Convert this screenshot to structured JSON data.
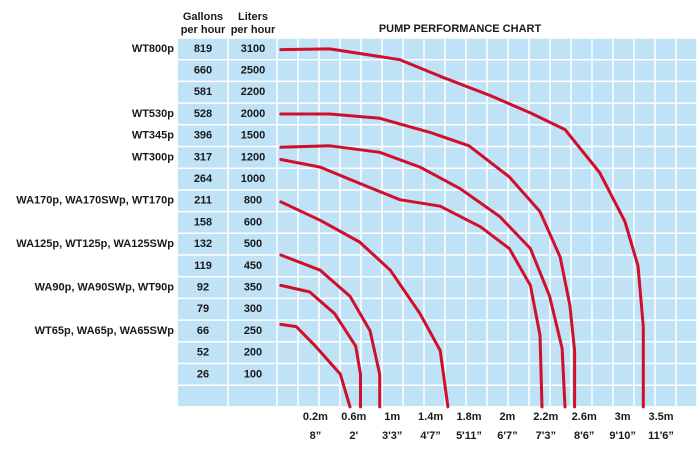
{
  "chart_data": {
    "type": "line",
    "title": "PUMP PERFORMANCE CHART",
    "column_headers": [
      [
        "Gallons",
        "per hour"
      ],
      [
        "Liters",
        "per hour"
      ]
    ],
    "rows": [
      {
        "model": "WT800p",
        "gallons": 819,
        "liters": 3100
      },
      {
        "gallons": 660,
        "liters": 2500
      },
      {
        "gallons": 581,
        "liters": 2200
      },
      {
        "model": "WT530p",
        "gallons": 528,
        "liters": 2000
      },
      {
        "model": "WT345p",
        "gallons": 396,
        "liters": 1500
      },
      {
        "model": "WT300p",
        "gallons": 317,
        "liters": 1200
      },
      {
        "gallons": 264,
        "liters": 1000
      },
      {
        "model": "WA170p, WA170SWp, WT170p",
        "gallons": 211,
        "liters": 800
      },
      {
        "gallons": 158,
        "liters": 600
      },
      {
        "model": "WA125p, WT125p, WA125SWp",
        "gallons": 132,
        "liters": 500
      },
      {
        "gallons": 119,
        "liters": 450
      },
      {
        "model": "WA90p, WA90SWp, WT90p",
        "gallons": 92,
        "liters": 350
      },
      {
        "gallons": 79,
        "liters": 300
      },
      {
        "model": "WT65p, WA65p, WA65SWp",
        "gallons": 66,
        "liters": 250
      },
      {
        "gallons": 52,
        "liters": 200
      },
      {
        "gallons": 26,
        "liters": 100
      }
    ],
    "xlim": [
      0,
      3.5
    ],
    "xticks": [
      {
        "value": 0.2,
        "label": "0.2m"
      },
      {
        "value": 0.6,
        "label": "0.6m"
      },
      {
        "value": 1,
        "label": "1m"
      },
      {
        "value": 1.4,
        "label": "1.4m"
      },
      {
        "value": 1.8,
        "label": "1.8m"
      },
      {
        "value": 2,
        "label": "2m"
      },
      {
        "value": 2.2,
        "label": "2.2m"
      },
      {
        "value": 2.6,
        "label": "2.6m"
      },
      {
        "value": 3,
        "label": "3m"
      },
      {
        "value": 3.5,
        "label": "3.5m"
      }
    ],
    "xticks_ft": [
      "8”",
      "2'",
      "3'3”",
      "4'7”",
      "5'11”",
      "6'7”",
      "7'3”",
      "8'6”",
      "9'10”",
      "11'6”"
    ],
    "ylim": [
      0,
      3100
    ],
    "color": "#d0102a",
    "series": [
      {
        "x": [
          0.02,
          0.35,
          1.08,
          1.5,
          1.91,
          2.12,
          2.4,
          2.76,
          3.03,
          3.2,
          3.27,
          3.27
        ],
        "values": [
          3080,
          3100,
          2800,
          2420,
          2170,
          2010,
          1640,
          1060,
          610,
          450,
          260,
          0
        ]
      },
      {
        "x": [
          0.02,
          0.35,
          0.87,
          1.4,
          1.8,
          2.01,
          2.17,
          2.35,
          2.45,
          2.5,
          2.5
        ],
        "values": [
          2000,
          2000,
          1900,
          1570,
          1360,
          1020,
          700,
          470,
          310,
          205,
          0
        ]
      },
      {
        "x": [
          0.02,
          0.35,
          0.87,
          1.29,
          1.71,
          1.96,
          2.12,
          2.24,
          2.37,
          2.4
        ],
        "values": [
          1340,
          1360,
          1270,
          1110,
          910,
          655,
          490,
          330,
          210,
          0
        ]
      },
      {
        "x": [
          0.02,
          0.25,
          0.66,
          1.08,
          1.5,
          1.86,
          2.01,
          2.12,
          2.17,
          2.18
        ],
        "values": [
          1180,
          1110,
          960,
          810,
          750,
          580,
          490,
          360,
          240,
          0
        ]
      },
      {
        "x": [
          0.02,
          0.25,
          0.66,
          0.98,
          1.29,
          1.5,
          1.58
        ],
        "values": [
          790,
          620,
          510,
          430,
          290,
          205,
          0
        ]
      },
      {
        "x": [
          0.02,
          0.25,
          0.56,
          0.77,
          0.87,
          0.87
        ],
        "values": [
          475,
          430,
          330,
          250,
          100,
          0
        ]
      },
      {
        "x": [
          0.02,
          0.17,
          0.4,
          0.62,
          0.67,
          0.67
        ],
        "values": [
          360,
          340,
          290,
          215,
          100,
          0
        ]
      },
      {
        "x": [
          0.02,
          0.1,
          0.2,
          0.46,
          0.56
        ],
        "values": [
          265,
          260,
          215,
          100,
          0
        ]
      }
    ]
  }
}
